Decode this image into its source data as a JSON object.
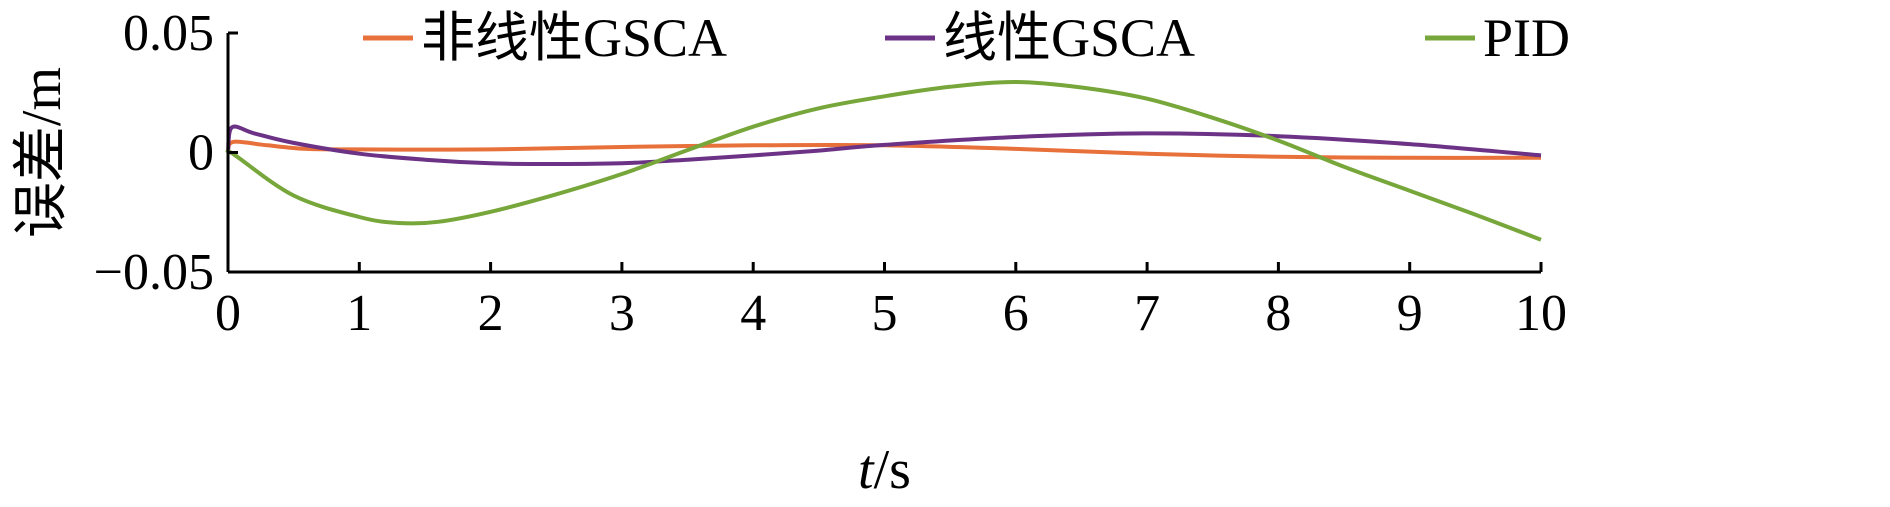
{
  "chart_data": {
    "type": "line",
    "title": "",
    "xlabel_italic": "t",
    "xlabel_rest": "/s",
    "ylabel": "误差/m",
    "xlim": [
      0,
      10
    ],
    "ylim": [
      -0.05,
      0.05
    ],
    "x_ticks": [
      0,
      1,
      2,
      3,
      4,
      5,
      6,
      7,
      8,
      9,
      10
    ],
    "x_tick_labels": [
      "0",
      "1",
      "2",
      "3",
      "4",
      "5",
      "6",
      "7",
      "8",
      "9",
      "10"
    ],
    "y_ticks": [
      0.05,
      0,
      -0.05
    ],
    "y_tick_labels": [
      "0.05",
      "0",
      "−0.05"
    ],
    "grid": false,
    "legend_position": "top",
    "series": [
      {
        "name": "非线性GSCA",
        "color": "#E8703A",
        "x": [
          0,
          0.05,
          0.3,
          0.6,
          1,
          1.5,
          2,
          3,
          4,
          5,
          6,
          7,
          8,
          9,
          10
        ],
        "y": [
          0.002,
          0.0045,
          0.003,
          0.0015,
          0.0013,
          0.0012,
          0.0013,
          0.0023,
          0.003,
          0.003,
          0.0015,
          -0.0005,
          -0.0018,
          -0.0022,
          -0.0022
        ]
      },
      {
        "name": "线性GSCA",
        "color": "#6B3285",
        "x": [
          0,
          0.03,
          0.2,
          0.5,
          1,
          1.5,
          2,
          2.5,
          3,
          3.5,
          4,
          4.5,
          5,
          6,
          7,
          8,
          9,
          10
        ],
        "y": [
          0,
          0.0105,
          0.008,
          0.004,
          -0.0005,
          -0.003,
          -0.0045,
          -0.0048,
          -0.0045,
          -0.003,
          -0.0012,
          0.0008,
          0.0032,
          0.0065,
          0.008,
          0.0068,
          0.0035,
          -0.0012
        ]
      },
      {
        "name": "PID",
        "color": "#77A63A",
        "x": [
          0,
          0.05,
          0.5,
          1,
          1.3,
          1.6,
          2,
          2.5,
          3,
          3.5,
          4,
          4.5,
          5,
          5.5,
          6,
          6.5,
          7,
          7.5,
          8,
          8.5,
          9,
          9.5,
          10
        ],
        "y": [
          0,
          -0.001,
          -0.018,
          -0.027,
          -0.0295,
          -0.029,
          -0.0248,
          -0.0175,
          -0.009,
          0.001,
          0.0108,
          0.0185,
          0.0235,
          0.0275,
          0.0295,
          0.0272,
          0.0225,
          0.0145,
          0.005,
          -0.006,
          -0.016,
          -0.026,
          -0.0365
        ]
      }
    ]
  }
}
